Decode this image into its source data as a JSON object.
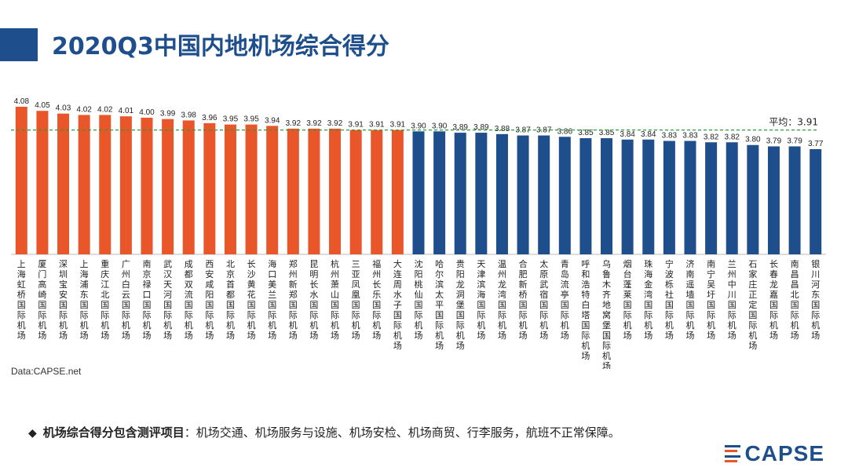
{
  "header": {
    "title": "2020Q3中国内地机场综合得分"
  },
  "source": "Data:CAPSE.net",
  "note": {
    "bullet": "◆",
    "lead": "机场综合得分包含测评项目",
    "body": "：机场交通、机场服务与设施、机场安检、机场商贸、行李服务，航班不正常保障。"
  },
  "logo": {
    "text": "CAPSE"
  },
  "colors": {
    "top": "#e8562a",
    "rest": "#1f4e8c",
    "avg": "#2f9a3c",
    "title": "#1f4e8c"
  },
  "chart_data": {
    "type": "bar",
    "categories": [
      "上海虹桥国际机场",
      "厦门高崎国际机场",
      "深圳宝安国际机场",
      "上海浦东国际机场",
      "重庆江北国际机场",
      "广州白云国际机场",
      "南京禄口国际机场",
      "武汉天河国际机场",
      "成都双流国际机场",
      "西安咸阳国际机场",
      "北京首都国际机场",
      "长沙黄花国际机场",
      "海口美兰国际机场",
      "郑州新郑国际机场",
      "昆明长水国际机场",
      "杭州萧山国际机场",
      "三亚凤凰国际机场",
      "福州长乐国际机场",
      "大连周水子国际机场",
      "沈阳桃仙国际机场",
      "哈尔滨太平国际机场",
      "贵阳龙洞堡国际机场",
      "天津滨海国际机场",
      "温州龙湾国际机场",
      "合肥新桥国际机场",
      "太原武宿国际机场",
      "青岛流亭国际机场",
      "呼和浩特白塔国际机场",
      "乌鲁木齐地窝堡国际机场",
      "烟台蓬莱国际机场",
      "珠海金湾国际机场",
      "宁波栎社国际机场",
      "济南遥墙国际机场",
      "南宁吴圩国际机场",
      "兰州中川国际机场",
      "石家庄正定国际机场",
      "长春龙嘉国际机场",
      "南昌昌北国际机场",
      "银川河东国际机场"
    ],
    "values": [
      4.08,
      4.05,
      4.03,
      4.02,
      4.02,
      4.01,
      4.0,
      3.99,
      3.98,
      3.96,
      3.95,
      3.95,
      3.94,
      3.92,
      3.92,
      3.92,
      3.91,
      3.91,
      3.91,
      3.9,
      3.9,
      3.89,
      3.89,
      3.88,
      3.87,
      3.87,
      3.86,
      3.85,
      3.85,
      3.84,
      3.84,
      3.83,
      3.83,
      3.82,
      3.82,
      3.8,
      3.79,
      3.79,
      3.77
    ],
    "value_labels": [
      "4.08",
      "4.05",
      "4.03",
      "4.02",
      "4.02",
      "4.01",
      "4.00",
      "3.99",
      "3.98",
      "3.96",
      "3.95",
      "3.95",
      "3.94",
      "3.92",
      "3.92",
      "3.92",
      "3.91",
      "3.91",
      "3.91",
      "3.90",
      "3.90",
      "3.89",
      "3.89",
      "3.88",
      "3.87",
      "3.87",
      "3.86",
      "3.85",
      "3.85",
      "3.84",
      "3.84",
      "3.83",
      "3.83",
      "3.82",
      "3.82",
      "3.80",
      "3.79",
      "3.79",
      "3.77"
    ],
    "highlight_count": 19,
    "average": 3.91,
    "average_label": "平均：3.91",
    "ylim": [
      3.0,
      4.08
    ]
  }
}
